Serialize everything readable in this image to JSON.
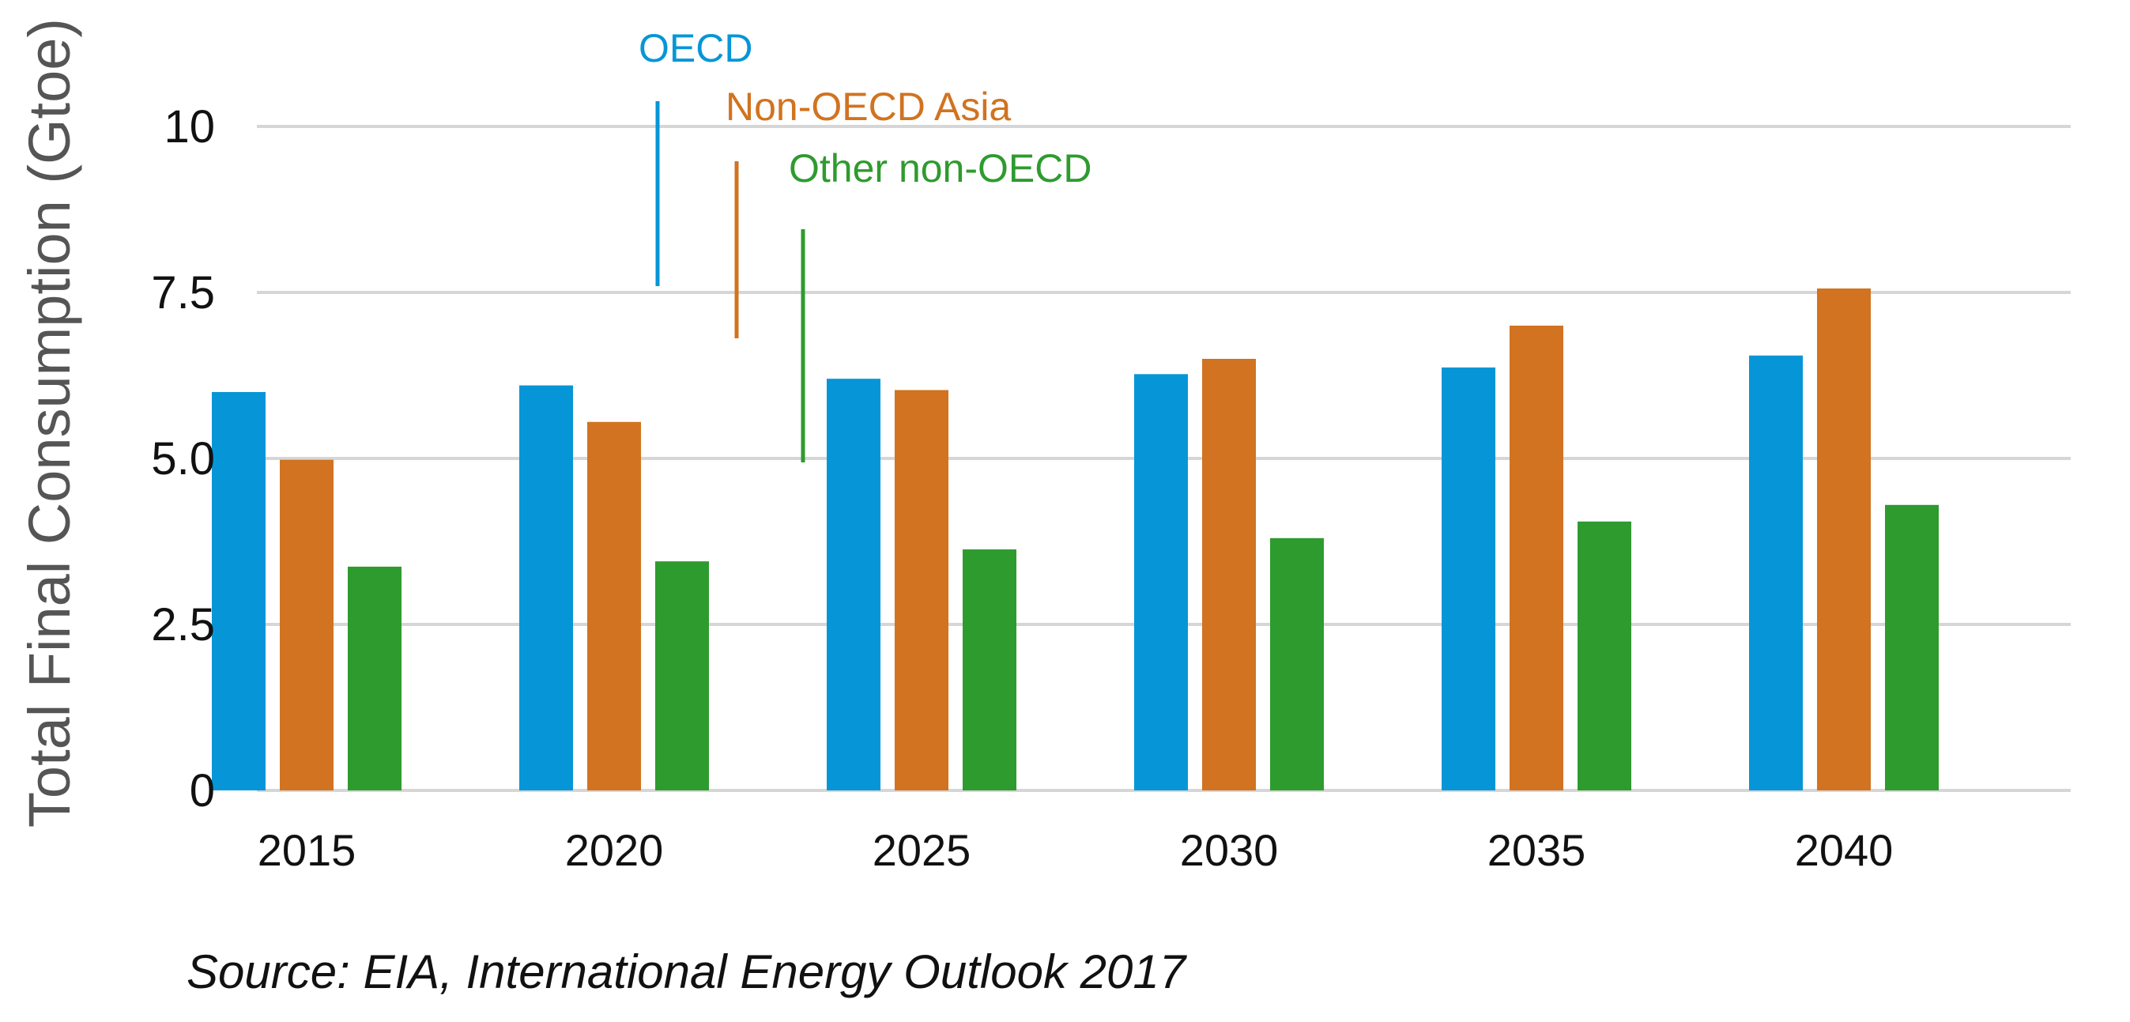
{
  "chart_data": {
    "type": "bar",
    "categories": [
      "2015",
      "2020",
      "2025",
      "2030",
      "2035",
      "2040"
    ],
    "series": [
      {
        "name": "OECD",
        "color": "#0696d7",
        "values": [
          6.0,
          6.1,
          6.2,
          6.27,
          6.37,
          6.55
        ]
      },
      {
        "name": "Non-OECD Asia",
        "color": "#d17320",
        "values": [
          4.98,
          5.55,
          6.03,
          6.5,
          7.0,
          7.56
        ]
      },
      {
        "name": "Other non-OECD",
        "color": "#2e9b2e",
        "values": [
          3.37,
          3.45,
          3.63,
          3.8,
          4.05,
          4.3
        ]
      }
    ],
    "title": "",
    "xlabel": "",
    "ylabel": "Total Final Consumption (Gtoe)",
    "ylim": [
      0,
      10
    ],
    "yticks": [
      0,
      2.5,
      5.0,
      7.5,
      10
    ],
    "ytick_labels": [
      "0",
      "2.5",
      "5.0",
      "7.5",
      "10"
    ],
    "grid": true,
    "legend_placement": "inline-top-left",
    "source": "Source:  EIA, International Energy Outlook 2017"
  }
}
